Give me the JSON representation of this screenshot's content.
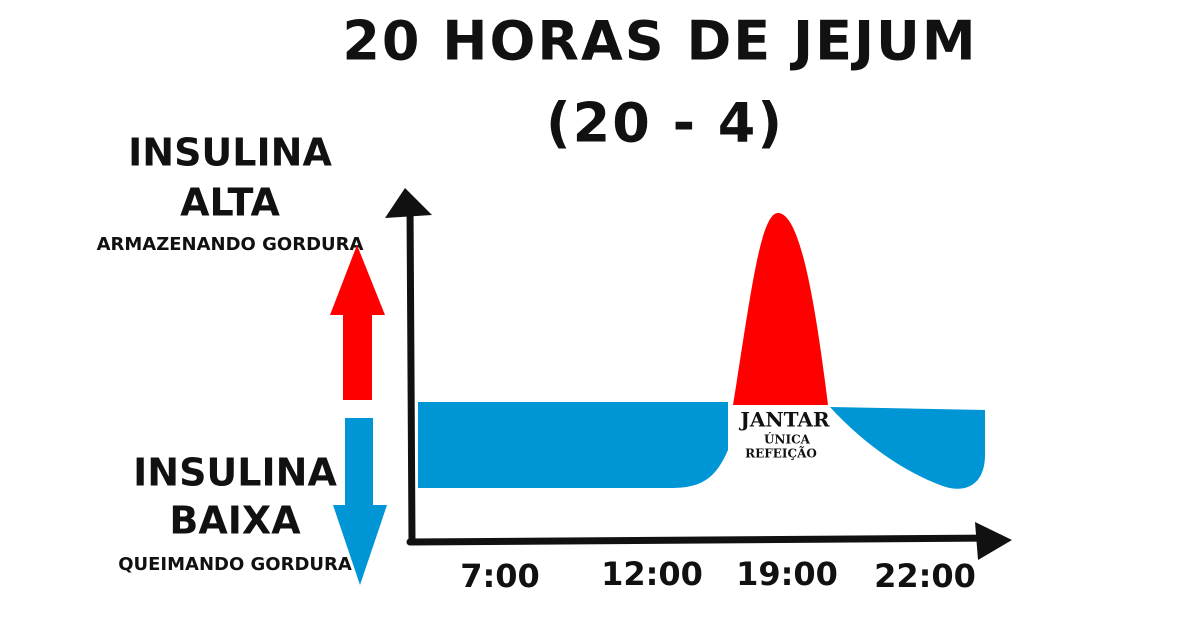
{
  "title": {
    "line1": "20 HORAS DE JEJUM",
    "line2": "(20 - 4)"
  },
  "legend": {
    "high": {
      "line1": "INSULINA",
      "line2": "ALTA",
      "caption": "ARMAZENANDO GORDURA"
    },
    "low": {
      "line1": "INSULINA",
      "line2": "BAIXA",
      "caption": "QUEIMANDO GORDURA"
    }
  },
  "meal": {
    "label": "JANTAR",
    "note_line1": "ÚNICA",
    "note_line2": "REFEIÇÃO"
  },
  "time_axis": {
    "labels": [
      "7:00",
      "12:00",
      "19:00",
      "22:00"
    ]
  }
}
